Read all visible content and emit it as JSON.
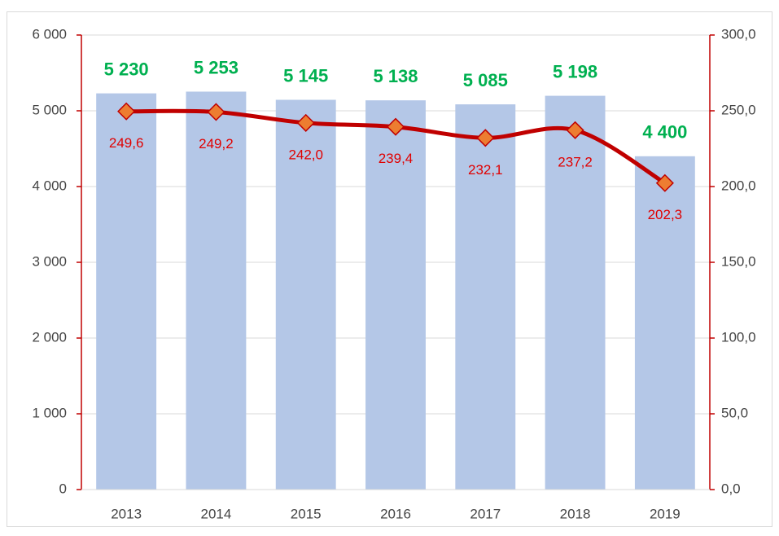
{
  "chart_data": {
    "type": "combo",
    "categories": [
      "2013",
      "2014",
      "2015",
      "2016",
      "2017",
      "2018",
      "2019"
    ],
    "series": [
      {
        "type": "bar",
        "color": "#b4c7e7",
        "label_color": "#00b050",
        "values": [
          5230,
          5253,
          5145,
          5138,
          5085,
          5198,
          4400
        ],
        "value_labels": [
          "5 230",
          "5 253",
          "5 145",
          "5 138",
          "5 085",
          "5 198",
          "4 400"
        ]
      },
      {
        "type": "line",
        "axis": "y2",
        "color": "#c00000",
        "marker_color": "#ed7d31",
        "label_color": "#e00000",
        "smooth": true,
        "values": [
          249.6,
          249.2,
          242.0,
          239.4,
          232.1,
          237.2,
          202.3
        ],
        "value_labels": [
          "249,6",
          "249,2",
          "242,0",
          "239,4",
          "232,1",
          "237,2",
          "202,3"
        ]
      }
    ],
    "ylim": [
      0,
      6000
    ],
    "yticks": [
      0,
      {
        "value": 1000,
        "label": "1 000"
      },
      {
        "value": 2000,
        "label": "2 000"
      },
      {
        "value": 3000,
        "label": "3 000"
      },
      {
        "value": 4000,
        "label": "4 000"
      },
      {
        "value": 5000,
        "label": "5 000"
      },
      {
        "value": 6000,
        "label": "6 000"
      }
    ],
    "y2lim": [
      0,
      300
    ],
    "y2ticks": [
      {
        "value": 0,
        "label": "0,0"
      },
      {
        "value": 50,
        "label": "50,0"
      },
      {
        "value": 100,
        "label": "100,0"
      },
      {
        "value": 150,
        "label": "150,0"
      },
      {
        "value": 200,
        "label": "200,0"
      },
      {
        "value": 250,
        "label": "250,0"
      },
      {
        "value": 300,
        "label": "300,0"
      }
    ],
    "grid": true,
    "axis_color": "#c00000"
  }
}
